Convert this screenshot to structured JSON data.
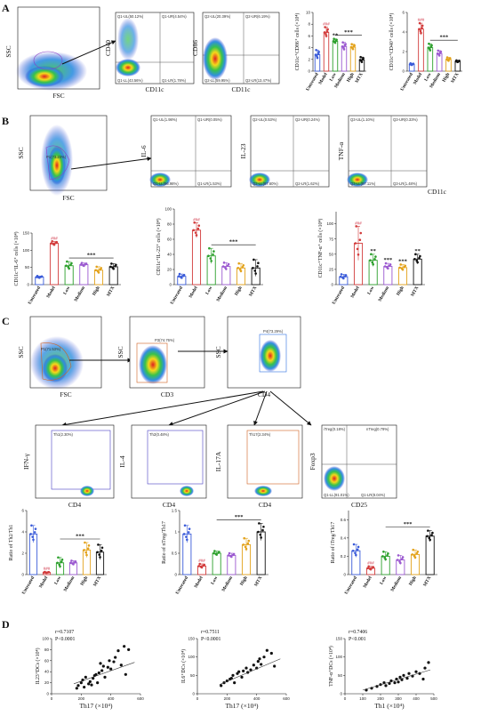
{
  "panels": {
    "A": {
      "label": "A",
      "flow": [
        {
          "x": "FSC",
          "y": "SSC",
          "gate": ""
        },
        {
          "x": "CD11c",
          "y": "CD40",
          "q": [
            "Q1-UL(50.12%)",
            "Q1-UR(4.54%)",
            "Q1-LL(43.56%)",
            "Q1-LR(1.78%)"
          ]
        },
        {
          "x": "CD11c",
          "y": "CD86",
          "q": [
            "Q2-UL(20.39%)",
            "Q2-UR(6.19%)",
            "Q2-LL(59.95%)",
            "Q2-LR(13.47%)"
          ]
        }
      ]
    },
    "B": {
      "label": "B",
      "flow": [
        {
          "x": "FSC",
          "y": "SSC",
          "gate": "P1(73.23%)"
        },
        {
          "x": "",
          "y": "IL-6",
          "q": [
            "Q1-UL(1.98%)",
            "Q1-UR(0.05%)",
            "Q1-LL(96.98%)",
            "Q1-LR(1.53%)"
          ]
        },
        {
          "x": "",
          "y": "IL-23",
          "q": [
            "Q2-UL(0.53%)",
            "Q2-UR(0.24%)",
            "Q2-LL(97.60%)",
            "Q2-LR(1.62%)"
          ]
        },
        {
          "x": "CD11c",
          "y": "TNF-α",
          "q": [
            "Q3-UL(1.10%)",
            "Q3-UR(0.33%)",
            "Q3-LL(97.11%)",
            "Q3-LR(1.48%)"
          ]
        }
      ]
    },
    "C": {
      "label": "C",
      "flow": [
        {
          "x": "FSC",
          "y": "SSC",
          "gate": "P1(71.53%)"
        },
        {
          "x": "CD3",
          "y": "SSC",
          "gate": "P3(74.76%)"
        },
        {
          "x": "CD4",
          "y": "SSC",
          "gate": "P4(73.29%)"
        },
        {
          "x": "CD4",
          "y": "IFN-γ",
          "gate": "Th1(2.30%)"
        },
        {
          "x": "CD4",
          "y": "IL-4",
          "gate": "Th2(0.48%)"
        },
        {
          "x": "CD4",
          "y": "IL-17A",
          "gate": "Th17(2.34%)"
        },
        {
          "x": "CD25",
          "y": "Foxp3",
          "q": [
            "iTreg(0.18%)",
            "nTreg(0.79%)",
            "Q1-LL(91.01%)",
            "Q1-LR(8.04%)"
          ]
        }
      ]
    },
    "D": {
      "label": "D"
    }
  },
  "chart_data": [
    {
      "type": "bar",
      "panel": "A",
      "ylabel": "CD11c⁺CD86⁺ cells (×10⁴)",
      "ylim": [
        0,
        10
      ],
      "categories": [
        "Untreated",
        "Model",
        "Low",
        "Medium",
        "High",
        "MTX"
      ],
      "values": [
        2.8,
        6.6,
        5.1,
        4.2,
        4.1,
        1.9
      ],
      "errors": [
        0.8,
        0.9,
        0.4,
        0.7,
        0.5,
        0.5
      ],
      "annotations": [
        "",
        "###",
        "**",
        "",
        "",
        ""
      ],
      "bracket": "***",
      "colors": [
        "#3a5bd9",
        "#d23b3b",
        "#2ca02c",
        "#9b59d0",
        "#e3a21a",
        "#111111"
      ]
    },
    {
      "type": "bar",
      "panel": "A",
      "ylabel": "CD11c⁺CD40⁺ cells (×10⁴)",
      "ylim": [
        0,
        6
      ],
      "categories": [
        "Untreated",
        "Model",
        "Low",
        "Medium",
        "High",
        "MTX"
      ],
      "values": [
        0.7,
        4.3,
        2.4,
        1.8,
        1.2,
        1.0
      ],
      "errors": [
        0.1,
        0.6,
        0.4,
        0.3,
        0.2,
        0.1
      ],
      "annotations": [
        "",
        "###",
        "",
        "",
        "",
        ""
      ],
      "bracket": "***",
      "colors": [
        "#3a5bd9",
        "#d23b3b",
        "#2ca02c",
        "#9b59d0",
        "#e3a21a",
        "#111111"
      ]
    },
    {
      "type": "bar",
      "panel": "B",
      "ylabel": "CD11c⁺IL-6⁺ cells (×10⁴)",
      "ylim": [
        0,
        150
      ],
      "categories": [
        "Untreated",
        "Model",
        "Low",
        "Medium",
        "High",
        "MTX"
      ],
      "values": [
        22,
        120,
        55,
        58,
        42,
        52
      ],
      "errors": [
        3,
        6,
        12,
        5,
        10,
        9
      ],
      "annotations": [
        "",
        "###",
        "",
        "",
        "",
        ""
      ],
      "bracket": "***",
      "colors": [
        "#3a5bd9",
        "#d23b3b",
        "#2ca02c",
        "#9b59d0",
        "#e3a21a",
        "#111111"
      ]
    },
    {
      "type": "bar",
      "panel": "B",
      "ylabel": "CD11c⁺IL-23⁺ cells (×10⁴)",
      "ylim": [
        0,
        100
      ],
      "categories": [
        "Untreated",
        "Model",
        "Low",
        "Medium",
        "High",
        "MTX"
      ],
      "values": [
        11,
        72,
        38,
        24,
        22,
        22
      ],
      "errors": [
        3,
        10,
        10,
        5,
        6,
        11
      ],
      "annotations": [
        "",
        "###",
        "",
        "",
        "",
        ""
      ],
      "bracket": "***",
      "colors": [
        "#3a5bd9",
        "#d23b3b",
        "#2ca02c",
        "#9b59d0",
        "#e3a21a",
        "#111111"
      ]
    },
    {
      "type": "bar",
      "panel": "B",
      "ylabel": "CD11c⁺TNF-α⁺ cells (×10⁴)",
      "ylim": [
        0,
        120
      ],
      "categories": [
        "Untreated",
        "Model",
        "Low",
        "Medium",
        "High",
        "MTX"
      ],
      "values": [
        13,
        68,
        40,
        30,
        28,
        42
      ],
      "errors": [
        4,
        28,
        10,
        5,
        5,
        8
      ],
      "annotations": [
        "",
        "###",
        "**",
        "***",
        "***",
        "**"
      ],
      "bracket": "",
      "colors": [
        "#3a5bd9",
        "#d23b3b",
        "#2ca02c",
        "#9b59d0",
        "#e3a21a",
        "#111111"
      ]
    },
    {
      "type": "bar",
      "panel": "C",
      "ylabel": "Ratio of Th2/Th1",
      "ylim": [
        0,
        6
      ],
      "categories": [
        "Untreated",
        "Model",
        "Low",
        "Medium",
        "High",
        "MTX"
      ],
      "values": [
        3.8,
        0.2,
        1.1,
        1.1,
        2.3,
        2.1
      ],
      "errors": [
        0.8,
        0.05,
        0.5,
        0.2,
        0.7,
        0.7
      ],
      "annotations": [
        "",
        "###",
        "",
        "",
        "",
        ""
      ],
      "bracket": "***",
      "colors": [
        "#3a5bd9",
        "#d23b3b",
        "#2ca02c",
        "#9b59d0",
        "#e3a21a",
        "#111111"
      ]
    },
    {
      "type": "bar",
      "panel": "C",
      "ylabel": "Ratio of nTreg/Th17",
      "ylim": [
        0,
        1.5
      ],
      "categories": [
        "Untreated",
        "Model",
        "Low",
        "Medium",
        "High",
        "MTX"
      ],
      "values": [
        0.95,
        0.2,
        0.5,
        0.45,
        0.7,
        1.0
      ],
      "errors": [
        0.2,
        0.05,
        0.05,
        0.05,
        0.15,
        0.2
      ],
      "annotations": [
        "",
        "###",
        "",
        "",
        "",
        ""
      ],
      "bracket": "***",
      "colors": [
        "#3a5bd9",
        "#d23b3b",
        "#2ca02c",
        "#9b59d0",
        "#e3a21a",
        "#111111"
      ]
    },
    {
      "type": "bar",
      "panel": "C",
      "ylabel": "Ratio of iTreg/Th17",
      "ylim": [
        0,
        0.7
      ],
      "categories": [
        "Untreated",
        "Model",
        "Low",
        "Medium",
        "High",
        "MTX"
      ],
      "values": [
        0.26,
        0.07,
        0.2,
        0.16,
        0.22,
        0.42
      ],
      "errors": [
        0.07,
        0.02,
        0.05,
        0.05,
        0.05,
        0.06
      ],
      "annotations": [
        "",
        "###",
        "",
        "",
        "",
        ""
      ],
      "bracket": "***",
      "colors": [
        "#3a5bd9",
        "#d23b3b",
        "#2ca02c",
        "#9b59d0",
        "#e3a21a",
        "#111111"
      ]
    },
    {
      "type": "scatter",
      "panel": "D",
      "xlabel": "Th17 (×10⁴)",
      "ylabel": "IL23⁺DCs (×10⁴)",
      "xlim": [
        0,
        600
      ],
      "ylim": [
        0,
        100
      ],
      "xticks": [
        0,
        200,
        400,
        600
      ],
      "yticks": [
        0,
        20,
        40,
        60,
        80,
        100
      ],
      "stats": [
        "r=0.7107",
        "P<0.0001"
      ],
      "fit": [
        [
          150,
          18
        ],
        [
          560,
          57
        ]
      ],
      "points": [
        [
          170,
          10
        ],
        [
          180,
          15
        ],
        [
          200,
          20
        ],
        [
          210,
          25
        ],
        [
          220,
          12
        ],
        [
          230,
          30
        ],
        [
          250,
          18
        ],
        [
          260,
          22
        ],
        [
          270,
          16
        ],
        [
          280,
          28
        ],
        [
          290,
          33
        ],
        [
          300,
          35
        ],
        [
          310,
          20
        ],
        [
          320,
          38
        ],
        [
          330,
          55
        ],
        [
          340,
          42
        ],
        [
          350,
          50
        ],
        [
          360,
          30
        ],
        [
          380,
          48
        ],
        [
          390,
          60
        ],
        [
          400,
          45
        ],
        [
          420,
          58
        ],
        [
          430,
          66
        ],
        [
          450,
          78
        ],
        [
          470,
          52
        ],
        [
          490,
          86
        ],
        [
          520,
          80
        ],
        [
          500,
          35
        ]
      ]
    },
    {
      "type": "scatter",
      "panel": "D",
      "xlabel": "Th17 (×10⁴)",
      "ylabel": "IL6⁺DCs (×10⁴)",
      "xlim": [
        0,
        600
      ],
      "ylim": [
        0,
        150
      ],
      "xticks": [
        0,
        200,
        400,
        600
      ],
      "yticks": [
        0,
        50,
        100,
        150
      ],
      "stats": [
        "r=0.7511",
        "P<0.0001"
      ],
      "fit": [
        [
          150,
          25
        ],
        [
          560,
          95
        ]
      ],
      "points": [
        [
          160,
          22
        ],
        [
          180,
          30
        ],
        [
          200,
          35
        ],
        [
          220,
          40
        ],
        [
          230,
          42
        ],
        [
          240,
          50
        ],
        [
          250,
          30
        ],
        [
          270,
          55
        ],
        [
          280,
          60
        ],
        [
          300,
          45
        ],
        [
          310,
          62
        ],
        [
          330,
          70
        ],
        [
          340,
          58
        ],
        [
          360,
          65
        ],
        [
          380,
          78
        ],
        [
          400,
          70
        ],
        [
          410,
          88
        ],
        [
          420,
          95
        ],
        [
          450,
          100
        ],
        [
          470,
          118
        ],
        [
          500,
          110
        ],
        [
          520,
          75
        ],
        [
          430,
          80
        ]
      ]
    },
    {
      "type": "scatter",
      "panel": "D",
      "xlabel": "Th1 (×10⁴)",
      "ylabel": "TNF-α⁺DCs (×10⁴)",
      "xlim": [
        0,
        500
      ],
      "ylim": [
        0,
        150
      ],
      "xticks": [
        0,
        100,
        200,
        300,
        400,
        500
      ],
      "yticks": [
        0,
        50,
        100,
        150
      ],
      "stats": [
        "r=0.7406",
        "P<0.001"
      ],
      "fit": [
        [
          100,
          10
        ],
        [
          480,
          65
        ]
      ],
      "points": [
        [
          120,
          10
        ],
        [
          150,
          15
        ],
        [
          180,
          20
        ],
        [
          200,
          25
        ],
        [
          220,
          30
        ],
        [
          230,
          22
        ],
        [
          250,
          28
        ],
        [
          260,
          35
        ],
        [
          280,
          30
        ],
        [
          290,
          40
        ],
        [
          300,
          32
        ],
        [
          310,
          45
        ],
        [
          320,
          38
        ],
        [
          330,
          50
        ],
        [
          350,
          42
        ],
        [
          360,
          55
        ],
        [
          380,
          48
        ],
        [
          400,
          60
        ],
        [
          420,
          55
        ],
        [
          450,
          70
        ],
        [
          470,
          85
        ],
        [
          440,
          40
        ]
      ]
    }
  ]
}
